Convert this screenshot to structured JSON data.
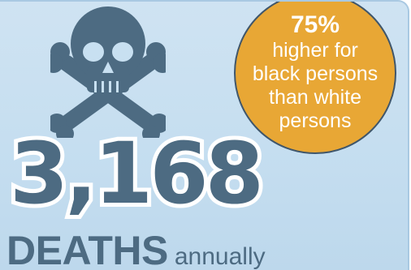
{
  "stat": {
    "number": "3,168",
    "unit": "DEATHS",
    "period": "annually"
  },
  "badge": {
    "percent": "75%",
    "lines": [
      "higher for",
      "black persons",
      "than white",
      "persons"
    ]
  },
  "icon": "skull-and-crossbones-icon",
  "colors": {
    "background": "#c8e0f1",
    "text": "#4d6b82",
    "badge": "#e8a735",
    "badge_text": "#ffffff"
  }
}
